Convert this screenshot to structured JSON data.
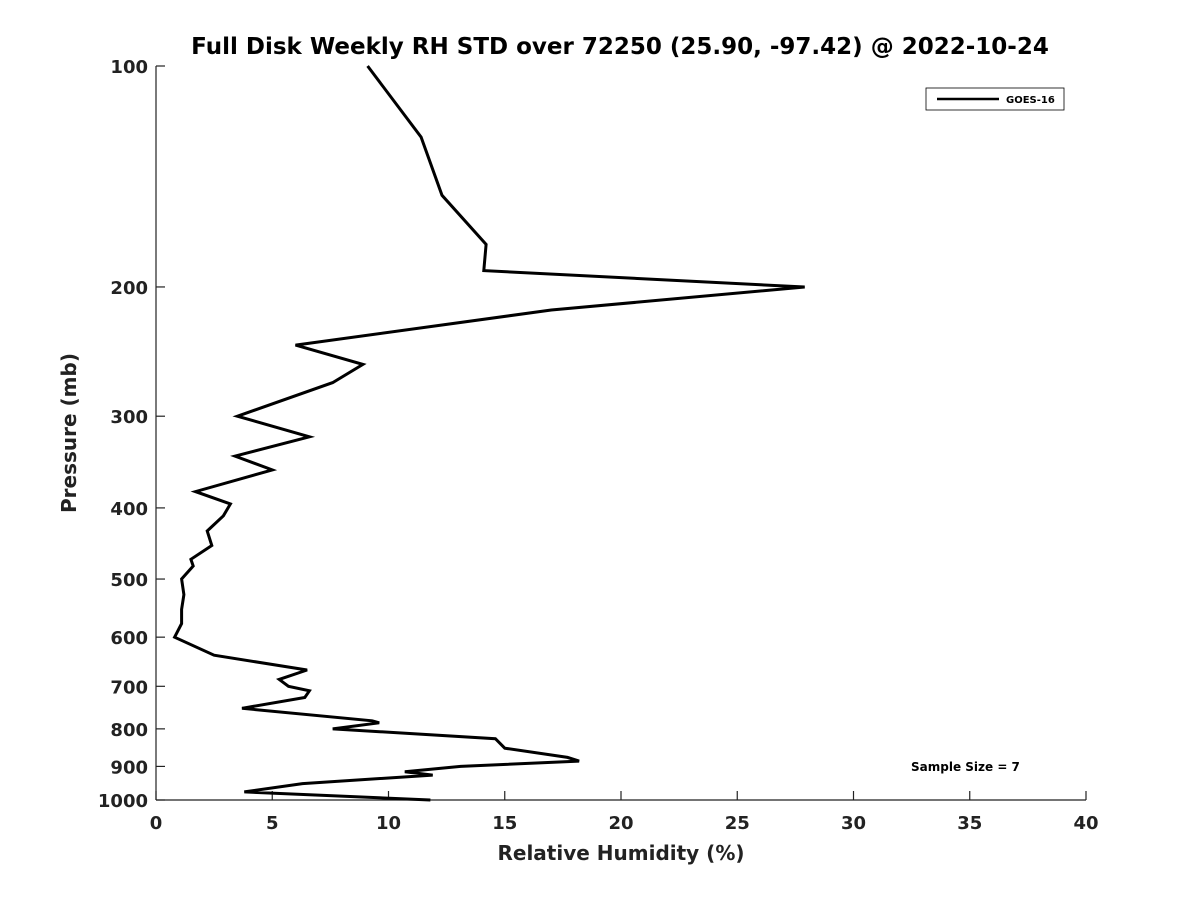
{
  "chart_data": {
    "type": "line",
    "title": "Full Disk Weekly RH STD over 72250 (25.90, -97.42) @ 2022-10-24",
    "xlabel": "Relative Humidity (%)",
    "ylabel": "Pressure (mb)",
    "xlim": [
      0,
      40
    ],
    "ylim": [
      1000,
      100
    ],
    "y_scale": "log",
    "y_reversed": true,
    "x_ticks": [
      "0",
      "5",
      "10",
      "15",
      "20",
      "25",
      "30",
      "35",
      "40"
    ],
    "y_ticks": [
      "100",
      "200",
      "300",
      "400",
      "500",
      "600",
      "700",
      "800",
      "900",
      "1000"
    ],
    "grid": false,
    "legend_position": "top-right",
    "series": [
      {
        "name": "GOES-16",
        "color": "#000000",
        "points": [
          [
            9.1,
            100
          ],
          [
            11.4,
            125
          ],
          [
            12.3,
            150
          ],
          [
            14.2,
            175
          ],
          [
            14.1,
            190
          ],
          [
            27.9,
            200
          ],
          [
            17.0,
            215
          ],
          [
            6.0,
            240
          ],
          [
            8.9,
            255
          ],
          [
            7.6,
            270
          ],
          [
            3.5,
            300
          ],
          [
            6.6,
            320
          ],
          [
            3.4,
            340
          ],
          [
            5.0,
            355
          ],
          [
            1.7,
            380
          ],
          [
            3.2,
            395
          ],
          [
            2.9,
            410
          ],
          [
            2.2,
            430
          ],
          [
            2.4,
            450
          ],
          [
            1.5,
            470
          ],
          [
            1.6,
            480
          ],
          [
            1.1,
            500
          ],
          [
            1.2,
            525
          ],
          [
            1.1,
            550
          ],
          [
            1.1,
            575
          ],
          [
            0.8,
            600
          ],
          [
            2.5,
            635
          ],
          [
            6.5,
            665
          ],
          [
            5.3,
            685
          ],
          [
            5.7,
            700
          ],
          [
            6.6,
            710
          ],
          [
            6.4,
            725
          ],
          [
            3.7,
            750
          ],
          [
            9.3,
            780
          ],
          [
            9.6,
            785
          ],
          [
            7.6,
            800
          ],
          [
            14.6,
            825
          ],
          [
            15.0,
            850
          ],
          [
            17.7,
            875
          ],
          [
            18.2,
            885
          ],
          [
            13.1,
            900
          ],
          [
            10.7,
            915
          ],
          [
            11.9,
            925
          ],
          [
            6.3,
            950
          ],
          [
            3.8,
            975
          ],
          [
            11.8,
            1000
          ]
        ]
      }
    ],
    "annotations": [
      "Sample Size = 7"
    ]
  }
}
